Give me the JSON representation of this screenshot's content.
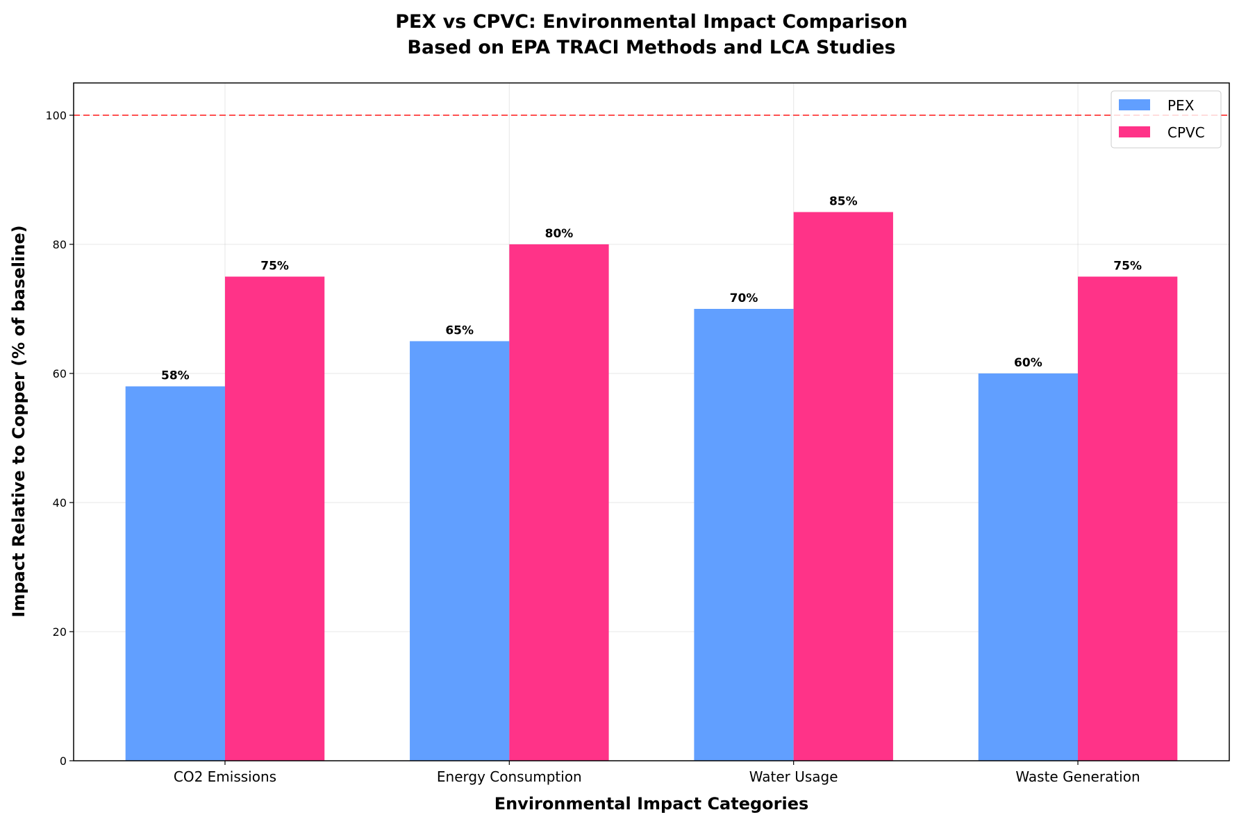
{
  "chart_data": {
    "type": "bar",
    "title": "PEX vs CPVC: Environmental Impact Comparison\nBased on EPA TRACI Methods and LCA Studies",
    "title_lines": [
      "PEX vs CPVC: Environmental Impact Comparison",
      "Based on EPA TRACI Methods and LCA Studies"
    ],
    "xlabel": "Environmental Impact Categories",
    "ylabel": "Impact Relative to Copper (% of baseline)",
    "categories": [
      "CO2 Emissions",
      "Energy Consumption",
      "Water Usage",
      "Waste Generation"
    ],
    "series": [
      {
        "name": "PEX",
        "values": [
          58,
          65,
          70,
          60
        ],
        "color": "#619FFF"
      },
      {
        "name": "CPVC",
        "values": [
          75,
          80,
          85,
          75
        ],
        "color": "#FF3388"
      }
    ],
    "data_label_suffix": "%",
    "ylim": [
      0,
      105
    ],
    "yticks": [
      0,
      20,
      40,
      60,
      80,
      100
    ],
    "reference_line": {
      "value": 100,
      "color": "#FF3333",
      "style": "dashed"
    },
    "grid": true,
    "legend": "top-right"
  }
}
